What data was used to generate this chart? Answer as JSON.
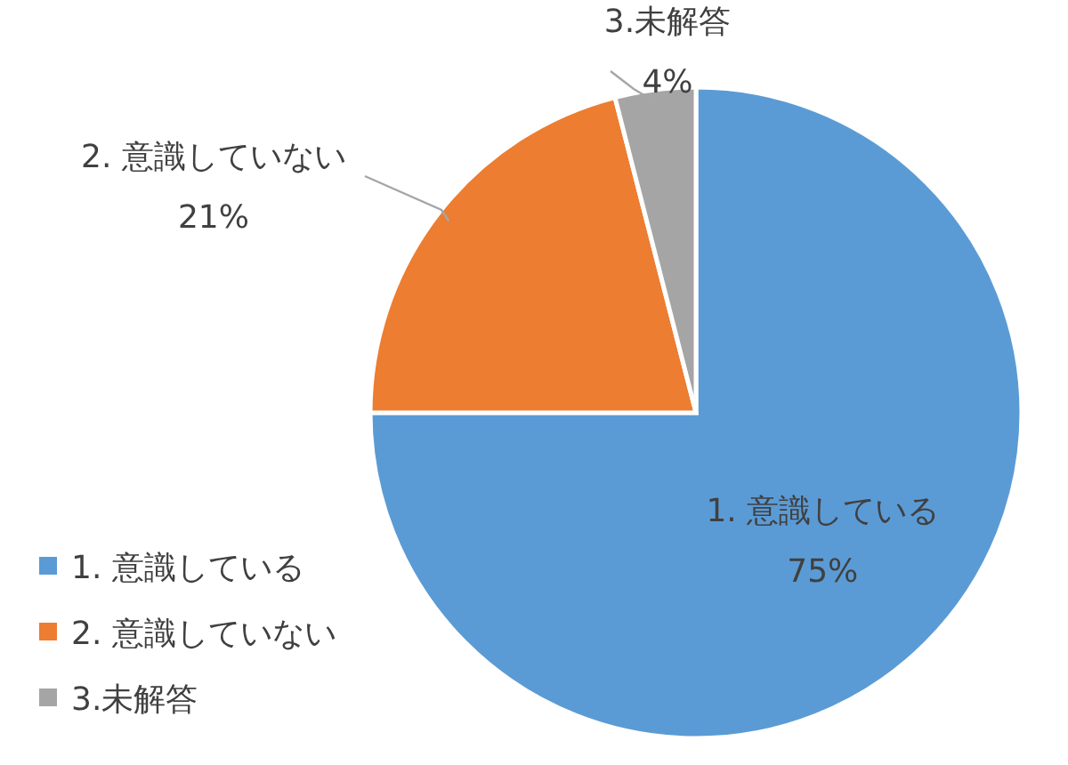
{
  "chart_data": {
    "type": "pie",
    "categories": [
      "1. 意識している",
      "2. 意識していない",
      "3.未解答"
    ],
    "values": [
      75,
      21,
      4
    ],
    "colors": [
      "#5b9bd5",
      "#ed7d31",
      "#a5a5a5"
    ],
    "value_labels": [
      "75%",
      "21%",
      "4%"
    ],
    "legend": "bottom left"
  }
}
